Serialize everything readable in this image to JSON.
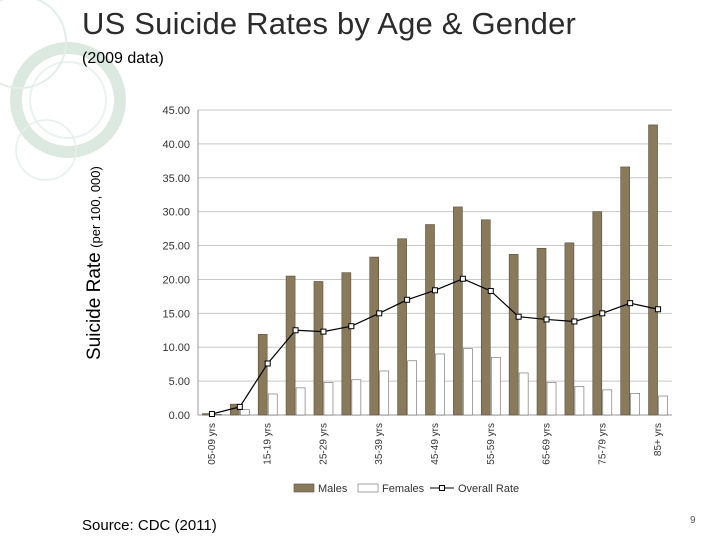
{
  "slide": {
    "title": "US Suicide Rates by Age & Gender",
    "subtitle": "(2009 data)",
    "ylabel_main": "Suicide Rate",
    "ylabel_unit": "(per 100, 000)",
    "source": "Source: CDC (2011)",
    "page_number": "9"
  },
  "chart_data": {
    "type": "bar",
    "categories": [
      "05-09 yrs",
      "10-14 yrs",
      "15-19 yrs",
      "20-24 yrs",
      "25-29 yrs",
      "30-34 yrs",
      "35-39 yrs",
      "40-44 yrs",
      "45-49 yrs",
      "50-54 yrs",
      "55-59 yrs",
      "60-64 yrs",
      "65-69 yrs",
      "70-74 yrs",
      "75-79 yrs",
      "80-84 yrs",
      "85+ yrs"
    ],
    "category_labels_shown": [
      "05-09 yrs",
      "",
      "15-19 yrs",
      "",
      "25-29 yrs",
      "",
      "35-39 yrs",
      "",
      "45-49 yrs",
      "",
      "55-59 yrs",
      "",
      "65-69 yrs",
      "",
      "75-79 yrs",
      "",
      "85+ yrs"
    ],
    "series": [
      {
        "name": "Males",
        "type": "bar",
        "color": "#8a7a5c",
        "values": [
          0.2,
          1.6,
          11.9,
          20.5,
          19.7,
          21.0,
          23.3,
          26.0,
          28.1,
          30.7,
          28.8,
          23.7,
          24.6,
          25.4,
          30.0,
          36.6,
          42.8
        ]
      },
      {
        "name": "Females",
        "type": "bar",
        "color": "#ffffff",
        "values": [
          0.1,
          0.8,
          3.1,
          4.0,
          4.8,
          5.2,
          6.5,
          8.0,
          9.0,
          9.8,
          8.5,
          6.2,
          4.8,
          4.2,
          3.7,
          3.2,
          2.8
        ]
      },
      {
        "name": "Overall Rate",
        "type": "line",
        "color": "#000000",
        "values": [
          0.15,
          1.2,
          7.6,
          12.5,
          12.3,
          13.1,
          15.0,
          17.0,
          18.4,
          20.1,
          18.3,
          14.5,
          14.1,
          13.8,
          15.0,
          16.5,
          15.6
        ]
      }
    ],
    "y_ticks": [
      "0.00",
      "5.00",
      "10.00",
      "15.00",
      "20.00",
      "25.00",
      "30.00",
      "35.00",
      "40.00",
      "45.00"
    ],
    "ylim": [
      0,
      45
    ],
    "grid": true,
    "legend_position": "bottom"
  }
}
